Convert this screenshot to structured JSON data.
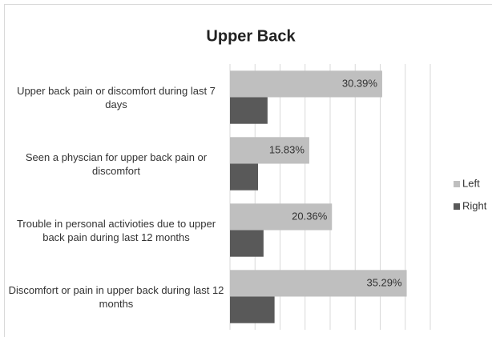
{
  "chart_data": {
    "type": "hbar",
    "title": "Upper Back",
    "categories": [
      "Upper back pain or discomfort during last 7 days",
      "Seen a physcian for upper back pain or discomfort",
      "Trouble in personal activioties due to upper back pain  during last 12 months",
      "Discomfort or pain in upper back during last 12 months"
    ],
    "series": [
      {
        "name": "Left",
        "color": "#bfbfbf",
        "values": [
          30.39,
          15.83,
          20.36,
          35.29
        ],
        "value_labels": [
          "30.39%",
          "15.83%",
          "20.36%",
          "35.29%"
        ]
      },
      {
        "name": "Right",
        "color": "#595959",
        "values": [
          7.5,
          5.6,
          6.7,
          8.9
        ]
      }
    ],
    "xlim": [
      0,
      40
    ],
    "xticks": [
      0,
      5,
      10,
      15,
      20,
      25,
      30,
      35,
      40
    ],
    "grid": true,
    "legend": "right"
  }
}
